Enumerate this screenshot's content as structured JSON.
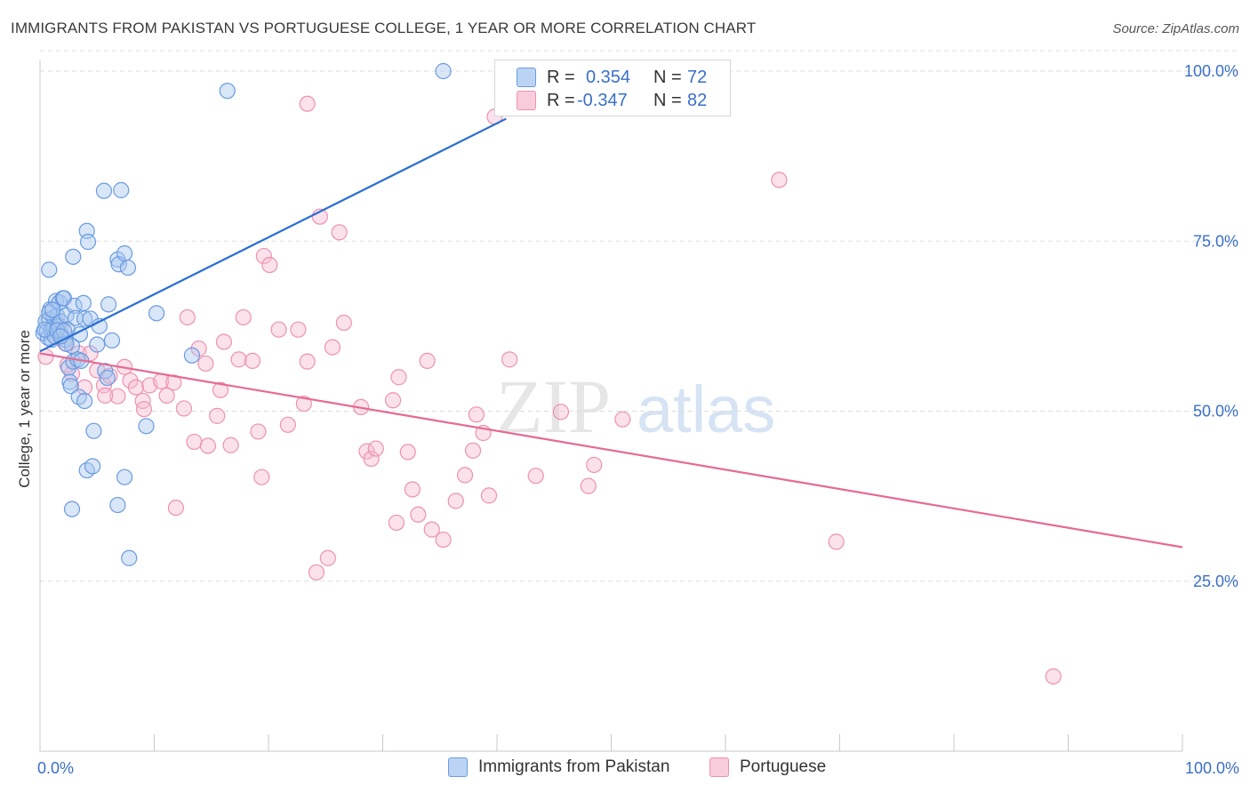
{
  "header": {
    "title": "IMMIGRANTS FROM PAKISTAN VS PORTUGUESE COLLEGE, 1 YEAR OR MORE CORRELATION CHART",
    "source": "Source: ZipAtlas.com"
  },
  "legend": {
    "rows": [
      {
        "r_label": "R =",
        "r_value": "0.354",
        "n_label": "N =",
        "n_value": "72"
      },
      {
        "r_label": "R =",
        "r_value": "-0.347",
        "n_label": "N =",
        "n_value": "82"
      }
    ]
  },
  "bottom_legend": {
    "pakistan": "Immigrants from Pakistan",
    "portuguese": "Portuguese"
  },
  "watermark": {
    "zip": "ZIP",
    "atlas": "atlas"
  },
  "colors": {
    "pakistan_fill": "#a9c8f0",
    "pakistan_stroke": "#6a9be0",
    "pakistan_line": "#2a6fd0",
    "portuguese_fill": "#f6bdd0",
    "portuguese_stroke": "#ec92b2",
    "portuguese_line": "#e56a94",
    "axis_label": "#3a6fc8"
  },
  "chart_data": {
    "type": "scatter",
    "title": "IMMIGRANTS FROM PAKISTAN VS PORTUGUESE COLLEGE, 1 YEAR OR MORE CORRELATION CHART",
    "xlabel": "",
    "ylabel": "College, 1 year or more",
    "xlim": [
      0,
      100
    ],
    "ylim": [
      0,
      103
    ],
    "x_tick_labels": [
      "0.0%",
      "100.0%"
    ],
    "y_ticks": [
      25,
      50,
      75,
      100
    ],
    "y_tick_labels": [
      "25.0%",
      "50.0%",
      "75.0%",
      "100.0%"
    ],
    "grid": true,
    "series": [
      {
        "name": "Immigrants from Pakistan",
        "r": 0.354,
        "n": 72,
        "trend": {
          "x": [
            0,
            40.8
          ],
          "y": [
            58.8,
            93
          ]
        },
        "points": [
          [
            0.3,
            61.5
          ],
          [
            0.5,
            63.2
          ],
          [
            0.6,
            61.8
          ],
          [
            0.7,
            60.8
          ],
          [
            0.8,
            63.5
          ],
          [
            0.9,
            65.0
          ],
          [
            1.0,
            62.0
          ],
          [
            1.0,
            60.5
          ],
          [
            1.2,
            63.8
          ],
          [
            1.2,
            62.2
          ],
          [
            1.3,
            61.0
          ],
          [
            1.4,
            66.2
          ],
          [
            1.5,
            64.0
          ],
          [
            1.6,
            62.5
          ],
          [
            1.7,
            66.0
          ],
          [
            1.8,
            63.2
          ],
          [
            1.9,
            61.2
          ],
          [
            2.0,
            66.6
          ],
          [
            2.1,
            66.6
          ],
          [
            2.2,
            60.5
          ],
          [
            2.3,
            64.1
          ],
          [
            2.4,
            62.0
          ],
          [
            2.5,
            56.4
          ],
          [
            2.6,
            54.3
          ],
          [
            2.7,
            53.7
          ],
          [
            2.8,
            59.6
          ],
          [
            2.9,
            57.3
          ],
          [
            3.0,
            65.5
          ],
          [
            3.1,
            63.7
          ],
          [
            3.3,
            57.6
          ],
          [
            3.4,
            52.1
          ],
          [
            3.5,
            61.3
          ],
          [
            3.6,
            57.4
          ],
          [
            3.8,
            65.9
          ],
          [
            3.9,
            63.6
          ],
          [
            3.9,
            51.5
          ],
          [
            4.1,
            76.5
          ],
          [
            4.2,
            74.9
          ],
          [
            4.4,
            63.6
          ],
          [
            4.7,
            47.1
          ],
          [
            5.0,
            59.8
          ],
          [
            5.2,
            62.5
          ],
          [
            5.6,
            82.4
          ],
          [
            5.7,
            55.9
          ],
          [
            5.9,
            54.9
          ],
          [
            6.0,
            65.7
          ],
          [
            6.3,
            60.4
          ],
          [
            6.8,
            72.3
          ],
          [
            6.9,
            71.6
          ],
          [
            7.1,
            82.5
          ],
          [
            7.4,
            73.2
          ],
          [
            7.7,
            71.1
          ],
          [
            7.4,
            40.3
          ],
          [
            6.8,
            36.2
          ],
          [
            9.3,
            47.8
          ],
          [
            10.2,
            64.4
          ],
          [
            13.3,
            58.2
          ],
          [
            16.4,
            97.1
          ],
          [
            35.3,
            100.0
          ],
          [
            4.1,
            41.3
          ],
          [
            4.6,
            41.9
          ],
          [
            2.8,
            35.6
          ],
          [
            7.8,
            28.4
          ],
          [
            0.4,
            62.0
          ],
          [
            0.8,
            64.5
          ],
          [
            1.1,
            64.9
          ],
          [
            1.5,
            61.9
          ],
          [
            2.1,
            61.8
          ],
          [
            2.3,
            59.9
          ],
          [
            2.9,
            72.7
          ],
          [
            0.8,
            70.8
          ],
          [
            1.8,
            61.0
          ]
        ]
      },
      {
        "name": "Portuguese",
        "r": -0.347,
        "n": 82,
        "trend": {
          "x": [
            0,
            100
          ],
          "y": [
            58.5,
            30
          ]
        },
        "points": [
          [
            0.5,
            58.0
          ],
          [
            1.2,
            61.5
          ],
          [
            1.8,
            62.5
          ],
          [
            2.2,
            60.0
          ],
          [
            2.8,
            55.5
          ],
          [
            3.4,
            58.5
          ],
          [
            3.9,
            53.5
          ],
          [
            4.4,
            58.5
          ],
          [
            5.0,
            56.0
          ],
          [
            5.6,
            53.8
          ],
          [
            6.1,
            55.2
          ],
          [
            6.8,
            52.2
          ],
          [
            7.4,
            56.5
          ],
          [
            7.9,
            54.5
          ],
          [
            8.4,
            53.5
          ],
          [
            9.0,
            51.5
          ],
          [
            9.1,
            50.3
          ],
          [
            9.6,
            53.8
          ],
          [
            10.6,
            54.4
          ],
          [
            11.1,
            52.3
          ],
          [
            11.7,
            54.2
          ],
          [
            12.6,
            50.4
          ],
          [
            12.9,
            63.8
          ],
          [
            13.5,
            45.5
          ],
          [
            13.9,
            59.2
          ],
          [
            14.5,
            57.0
          ],
          [
            14.7,
            44.9
          ],
          [
            15.5,
            49.3
          ],
          [
            15.8,
            53.1
          ],
          [
            16.1,
            60.2
          ],
          [
            16.7,
            45.0
          ],
          [
            17.4,
            57.6
          ],
          [
            17.8,
            63.8
          ],
          [
            18.6,
            57.4
          ],
          [
            19.1,
            47.0
          ],
          [
            19.4,
            40.3
          ],
          [
            19.6,
            72.8
          ],
          [
            20.1,
            71.5
          ],
          [
            20.9,
            62.0
          ],
          [
            21.7,
            48.0
          ],
          [
            22.6,
            62.0
          ],
          [
            23.1,
            51.1
          ],
          [
            23.4,
            57.3
          ],
          [
            23.4,
            95.2
          ],
          [
            24.5,
            78.6
          ],
          [
            25.6,
            59.4
          ],
          [
            26.2,
            76.3
          ],
          [
            26.6,
            63.0
          ],
          [
            28.1,
            50.6
          ],
          [
            28.6,
            44.1
          ],
          [
            29.0,
            43.0
          ],
          [
            29.4,
            44.5
          ],
          [
            30.9,
            51.6
          ],
          [
            31.4,
            55.0
          ],
          [
            32.2,
            44.0
          ],
          [
            32.6,
            38.5
          ],
          [
            33.1,
            34.8
          ],
          [
            33.9,
            57.4
          ],
          [
            35.3,
            31.1
          ],
          [
            36.4,
            36.8
          ],
          [
            37.2,
            40.6
          ],
          [
            37.9,
            44.2
          ],
          [
            38.2,
            49.5
          ],
          [
            38.8,
            46.8
          ],
          [
            39.3,
            37.6
          ],
          [
            39.8,
            93.3
          ],
          [
            41.1,
            57.6
          ],
          [
            43.4,
            40.5
          ],
          [
            45.6,
            49.9
          ],
          [
            48.0,
            39.0
          ],
          [
            48.5,
            42.1
          ],
          [
            51.0,
            48.8
          ],
          [
            64.7,
            84.0
          ],
          [
            69.7,
            30.8
          ],
          [
            88.7,
            11.0
          ],
          [
            11.9,
            35.8
          ],
          [
            25.2,
            28.4
          ],
          [
            24.2,
            26.3
          ],
          [
            31.2,
            33.6
          ],
          [
            34.3,
            32.6
          ],
          [
            5.7,
            52.3
          ],
          [
            2.4,
            56.8
          ]
        ]
      }
    ]
  }
}
